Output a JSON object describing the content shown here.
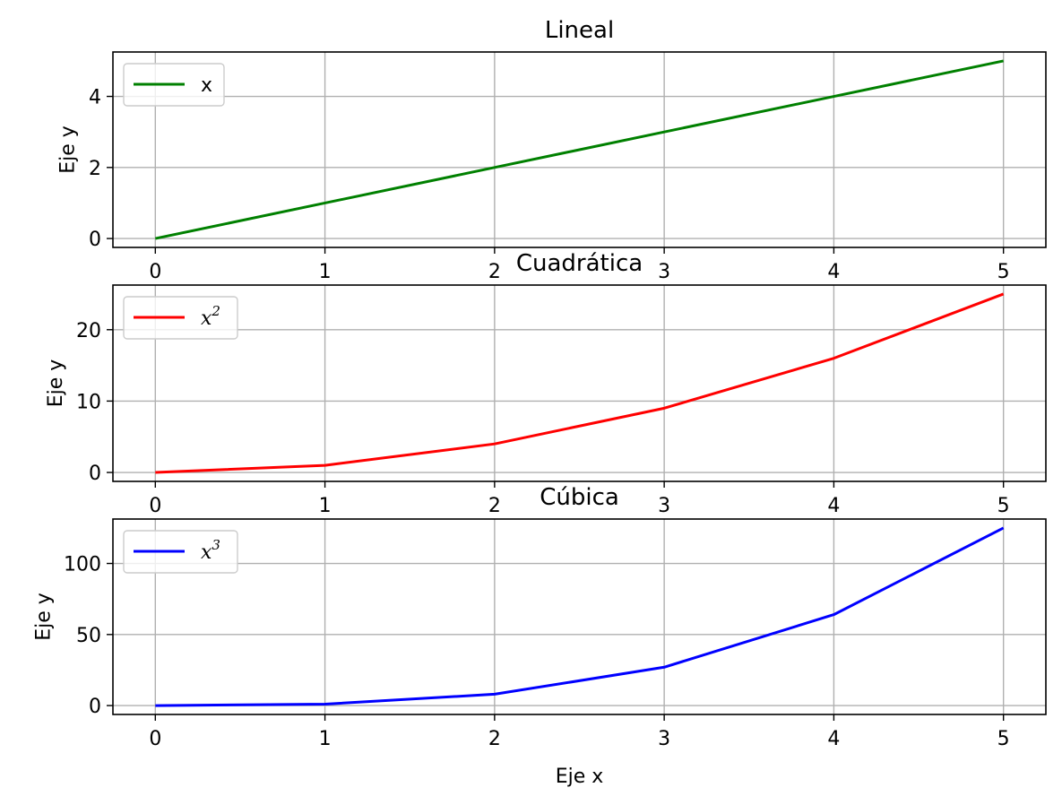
{
  "chart_data": [
    {
      "type": "line",
      "title": "Lineal",
      "xlabel": "",
      "ylabel": "Eje y",
      "x": [
        0,
        1,
        2,
        3,
        4,
        5
      ],
      "xlim": [
        -0.25,
        5.25
      ],
      "ylim": [
        -0.25,
        5.25
      ],
      "xticks": [
        0,
        1,
        2,
        3,
        4,
        5
      ],
      "yticks": [
        0,
        2,
        4
      ],
      "grid": true,
      "legend_position": "upper-left",
      "series": [
        {
          "name": "x",
          "name_sup": "",
          "name_is_math": false,
          "values": [
            0,
            1,
            2,
            3,
            4,
            5
          ],
          "color": "#008000"
        }
      ]
    },
    {
      "type": "line",
      "title": "Cuadrática",
      "xlabel": "",
      "ylabel": "Eje y",
      "x": [
        0,
        1,
        2,
        3,
        4,
        5
      ],
      "xlim": [
        -0.25,
        5.25
      ],
      "ylim": [
        -1.25,
        26.25
      ],
      "xticks": [
        0,
        1,
        2,
        3,
        4,
        5
      ],
      "yticks": [
        0,
        10,
        20
      ],
      "grid": true,
      "legend_position": "upper-left",
      "series": [
        {
          "name": "x",
          "name_sup": "2",
          "name_is_math": true,
          "values": [
            0,
            1,
            4,
            9,
            16,
            25
          ],
          "color": "#ff0000"
        }
      ]
    },
    {
      "type": "line",
      "title": "Cúbica",
      "xlabel": "Eje x",
      "ylabel": "Eje y",
      "x": [
        0,
        1,
        2,
        3,
        4,
        5
      ],
      "xlim": [
        -0.25,
        5.25
      ],
      "ylim": [
        -6.25,
        131.25
      ],
      "xticks": [
        0,
        1,
        2,
        3,
        4,
        5
      ],
      "yticks": [
        0,
        50,
        100
      ],
      "grid": true,
      "legend_position": "upper-left",
      "series": [
        {
          "name": "x",
          "name_sup": "3",
          "name_is_math": true,
          "values": [
            0,
            1,
            8,
            27,
            64,
            125
          ],
          "color": "#0000ff"
        }
      ]
    }
  ]
}
